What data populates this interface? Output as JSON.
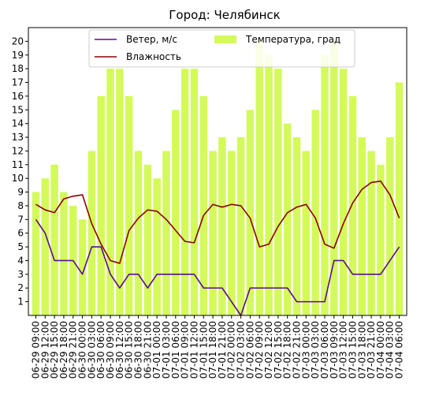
{
  "chart_data": {
    "type": "bar+line",
    "title": "Город: Челябинск",
    "categories": [
      "06-29 09:00",
      "06-29 12:00",
      "06-29 15:00",
      "06-29 18:00",
      "06-29 21:00",
      "06-30 00:00",
      "06-30 03:00",
      "06-30 06:00",
      "06-30 09:00",
      "06-30 12:00",
      "06-30 15:00",
      "06-30 18:00",
      "06-30 21:00",
      "07-01 00:00",
      "07-01 03:00",
      "07-01 06:00",
      "07-01 09:00",
      "07-01 12:00",
      "07-01 15:00",
      "07-01 18:00",
      "07-01 21:00",
      "07-02 00:00",
      "07-02 03:00",
      "07-02 06:00",
      "07-02 09:00",
      "07-02 12:00",
      "07-02 15:00",
      "07-02 18:00",
      "07-02 21:00",
      "07-03 00:00",
      "07-03 03:00",
      "07-03 06:00",
      "07-03 09:00",
      "07-03 12:00",
      "07-03 15:00",
      "07-03 18:00",
      "07-03 21:00",
      "07-04 00:00",
      "07-04 03:00",
      "07-04 06:00"
    ],
    "ylim": [
      0,
      21
    ],
    "yticks": [
      1,
      2,
      3,
      4,
      5,
      6,
      7,
      8,
      9,
      10,
      11,
      12,
      13,
      14,
      15,
      16,
      17,
      18,
      19,
      20
    ],
    "legend_position": "upper center",
    "series": [
      {
        "name": "Температура, град",
        "kind": "bar",
        "color": "#d4fa5a",
        "values": [
          9,
          10,
          11,
          9,
          8,
          7,
          12,
          16,
          18,
          18,
          16,
          12,
          11,
          10,
          12,
          15,
          18,
          18,
          16,
          12,
          13,
          12,
          13,
          15,
          20,
          19,
          18,
          14,
          13,
          12,
          15,
          19,
          20,
          18,
          16,
          13,
          12,
          11,
          13,
          17
        ]
      },
      {
        "name": "Ветер, м/с",
        "kind": "line",
        "color": "#5b0a91",
        "values": [
          7,
          6,
          4,
          4,
          4,
          3,
          5,
          5,
          3,
          2,
          3,
          3,
          2,
          3,
          3,
          3,
          3,
          3,
          2,
          2,
          2,
          1,
          0,
          2,
          2,
          2,
          2,
          2,
          1,
          1,
          1,
          1,
          4,
          4,
          3,
          3,
          3,
          3,
          4,
          5
        ]
      },
      {
        "name": "Влажность",
        "kind": "line",
        "color": "#8b0000",
        "values": [
          8.1,
          7.7,
          7.5,
          8.5,
          8.7,
          8.8,
          6.7,
          5.2,
          4.0,
          3.8,
          6.2,
          7.1,
          7.7,
          7.6,
          7.0,
          6.2,
          5.4,
          5.3,
          7.3,
          8.1,
          7.9,
          8.1,
          8.0,
          7.1,
          5.0,
          5.2,
          6.5,
          7.5,
          7.9,
          8.1,
          7.1,
          5.2,
          4.9,
          6.7,
          8.2,
          9.2,
          9.7,
          9.8,
          8.8,
          7.1
        ]
      }
    ]
  }
}
